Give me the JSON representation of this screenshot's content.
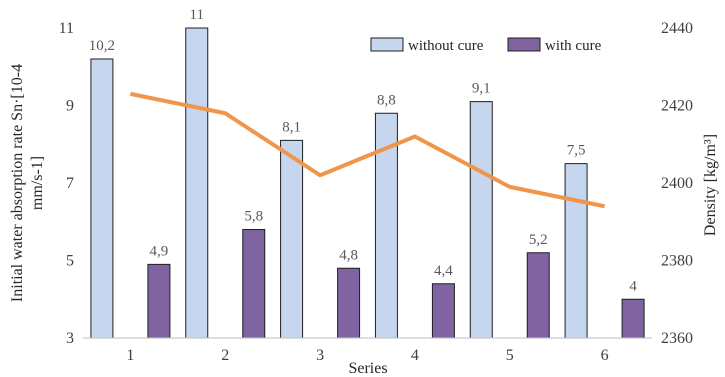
{
  "chart_data": {
    "type": "bar",
    "categories": [
      "1",
      "2",
      "3",
      "4",
      "5",
      "6"
    ],
    "xlabel": "Series",
    "ylabel_lines": [
      "Initial water absorption rate Sn·[10-4",
      "mm/s-1]"
    ],
    "ylabel2": "Density [kg/m³]",
    "ylim": [
      3,
      11
    ],
    "yticks": [
      "3",
      "5",
      "7",
      "9",
      "11"
    ],
    "ylim2": [
      2360,
      2440
    ],
    "yticks2": [
      "2360",
      "2380",
      "2400",
      "2420",
      "2440"
    ],
    "legend_position": "top-right",
    "series": [
      {
        "name": "without cure",
        "color": "#c5d6ee",
        "values": [
          10.2,
          11,
          8.1,
          8.8,
          9.1,
          7.5
        ],
        "labels": [
          "10,2",
          "11",
          "8,1",
          "8,8",
          "9,1",
          "7,5"
        ]
      },
      {
        "name": "with cure",
        "color": "#8064a2",
        "values": [
          4.9,
          5.8,
          4.8,
          4.4,
          5.2,
          4
        ],
        "labels": [
          "4,9",
          "5,8",
          "4,8",
          "4,4",
          "5,2",
          "4"
        ]
      }
    ],
    "line_series": {
      "axis": "secondary",
      "color": "#f0954a",
      "values": [
        2423,
        2418,
        2402,
        2412,
        2399,
        2394
      ]
    }
  }
}
